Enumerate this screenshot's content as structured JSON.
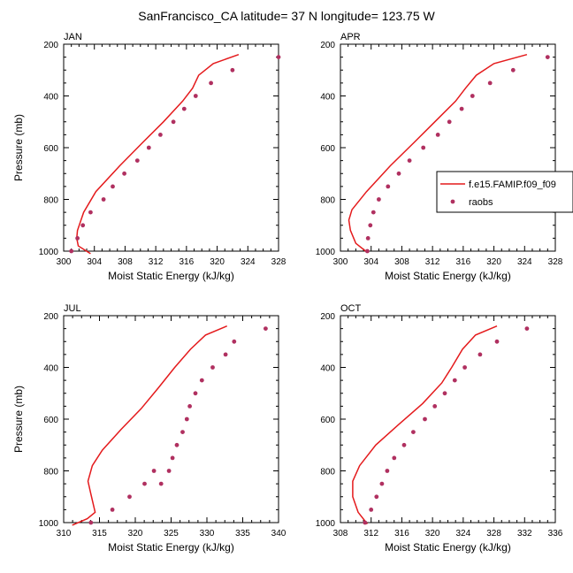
{
  "figure": {
    "title": "SanFrancisco_CA  latitude= 37 N longitude= 123.75 W"
  },
  "colors": {
    "model": "#e41a1c",
    "raobs": "#b03060",
    "axis": "#000000"
  },
  "legend": {
    "entries": [
      {
        "label": "f.e15.FAMIP.f09_f09",
        "marker": "line"
      },
      {
        "label": "raobs",
        "marker": "dot"
      }
    ],
    "placement": "right of APR panel"
  },
  "chart_data": [
    {
      "type": "line+scatter",
      "panel": "JAN",
      "xlabel": "Moist Static Energy (kJ/kg)",
      "ylabel": "Pressure (mb)",
      "xlim": [
        300,
        328
      ],
      "ylim": [
        1000,
        200
      ],
      "xticks": [
        300,
        304,
        308,
        312,
        316,
        320,
        324,
        328
      ],
      "yticks": [
        200,
        400,
        600,
        800,
        1000
      ],
      "model": {
        "x": [
          322.8,
          319.5,
          317.6,
          316.8,
          315.5,
          313.0,
          310.3,
          307.3,
          304.2,
          302.6,
          301.8,
          301.7,
          301.9,
          303.5
        ],
        "y": [
          240,
          275,
          320,
          370,
          420,
          500,
          580,
          670,
          770,
          850,
          920,
          950,
          980,
          1010
        ]
      },
      "raobs": {
        "x": [
          328,
          322,
          319.2,
          317.2,
          315.7,
          314.3,
          312.6,
          311.1,
          309.6,
          307.9,
          306.4,
          305.2,
          303.5,
          302.5,
          301.8,
          301.0
        ],
        "y": [
          250,
          300,
          350,
          400,
          450,
          500,
          550,
          600,
          650,
          700,
          750,
          800,
          850,
          900,
          950,
          1000
        ]
      }
    },
    {
      "type": "line+scatter",
      "panel": "APR",
      "xlabel": "Moist Static Energy (kJ/kg)",
      "ylabel": "",
      "xlim": [
        300,
        328
      ],
      "ylim": [
        1000,
        200
      ],
      "xticks": [
        300,
        304,
        308,
        312,
        316,
        320,
        324,
        328
      ],
      "yticks": [
        200,
        400,
        600,
        800,
        1000
      ],
      "model": {
        "x": [
          324.3,
          320.0,
          317.7,
          316.3,
          315.0,
          312.3,
          309.6,
          306.5,
          303.4,
          301.5,
          301.1,
          301.3,
          302.0,
          303.5
        ],
        "y": [
          240,
          275,
          320,
          370,
          420,
          500,
          580,
          670,
          770,
          840,
          880,
          920,
          970,
          1005
        ]
      },
      "raobs": {
        "x": [
          327,
          322.5,
          319.5,
          317.2,
          315.8,
          314.2,
          312.7,
          310.8,
          309.0,
          307.6,
          306.2,
          305.0,
          304.3,
          303.9,
          303.6,
          303.5
        ],
        "y": [
          250,
          300,
          350,
          400,
          450,
          500,
          550,
          600,
          650,
          700,
          750,
          800,
          850,
          900,
          950,
          1000
        ]
      }
    },
    {
      "type": "line+scatter",
      "panel": "JUL",
      "xlabel": "Moist Static Energy (kJ/kg)",
      "ylabel": "Pressure (mb)",
      "xlim": [
        310,
        340
      ],
      "ylim": [
        1000,
        200
      ],
      "xticks": [
        310,
        315,
        320,
        325,
        330,
        335,
        340
      ],
      "yticks": [
        200,
        400,
        600,
        800,
        1000
      ],
      "model": {
        "x": [
          332.8,
          329.8,
          327.7,
          325.5,
          323.2,
          320.8,
          318.0,
          315.4,
          314.0,
          313.4,
          313.8,
          314.4,
          313.3,
          311.2
        ],
        "y": [
          240,
          275,
          330,
          400,
          480,
          560,
          640,
          720,
          780,
          840,
          890,
          960,
          985,
          1010
        ]
      },
      "raobs": {
        "x": [
          338.2,
          333.8,
          332.6,
          330.8,
          329.3,
          328.4,
          327.6,
          327.2,
          326.6,
          325.8,
          325.2,
          324.7,
          323.6,
          322.6,
          321.3,
          319.2,
          316.8,
          313.8
        ],
        "y": [
          250,
          300,
          350,
          400,
          450,
          500,
          550,
          600,
          650,
          700,
          750,
          800,
          850,
          800,
          850,
          900,
          950,
          1000
        ]
      }
    },
    {
      "type": "line+scatter",
      "panel": "OCT",
      "xlabel": "Moist Static Energy (kJ/kg)",
      "ylabel": "",
      "xlim": [
        308,
        336
      ],
      "ylim": [
        1000,
        200
      ],
      "xticks": [
        308,
        312,
        316,
        320,
        324,
        328,
        332,
        336
      ],
      "yticks": [
        200,
        400,
        600,
        800,
        1000
      ],
      "model": {
        "x": [
          328.4,
          325.6,
          323.9,
          322.5,
          321.2,
          318.7,
          315.6,
          312.6,
          310.5,
          309.6,
          309.6,
          310.3,
          311.5
        ],
        "y": [
          240,
          275,
          330,
          400,
          460,
          540,
          620,
          700,
          780,
          840,
          900,
          960,
          1005
        ]
      },
      "raobs": {
        "x": [
          332.3,
          328.4,
          326.2,
          324.2,
          322.9,
          321.6,
          320.3,
          319.0,
          317.5,
          316.3,
          315.0,
          314.1,
          313.4,
          312.7,
          312.0,
          311.2
        ],
        "y": [
          250,
          300,
          350,
          400,
          450,
          500,
          550,
          600,
          650,
          700,
          750,
          800,
          850,
          900,
          950,
          1000
        ]
      }
    }
  ]
}
